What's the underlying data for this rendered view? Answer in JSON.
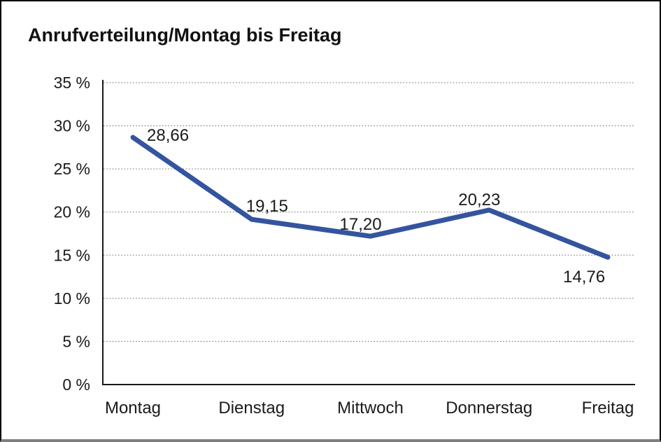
{
  "title": "Anrufverteilung/Montag bis Freitag",
  "colors": {
    "line": "#34549f",
    "grid": "#8a8a8a",
    "axis": "#1a1a1a",
    "text": "#1a1a1a",
    "frame_border": "#000000",
    "frame_shadow": "#7f7f7f",
    "background": "#ffffff"
  },
  "chart_data": {
    "type": "line",
    "title": "Anrufverteilung/Montag bis Freitag",
    "categories": [
      "Montag",
      "Dienstag",
      "Mittwoch",
      "Donnerstag",
      "Freitag"
    ],
    "values": [
      28.66,
      19.15,
      17.2,
      20.23,
      14.76
    ],
    "point_labels": [
      "28,66",
      "19,15",
      "17,20",
      "20,23",
      "14,76"
    ],
    "unit": "%",
    "ylim": [
      0,
      35
    ],
    "y_tick_step": 5,
    "y_tick_labels": [
      "0 %",
      "5 %",
      "10 %",
      "15 %",
      "20 %",
      "25 %",
      "30 %",
      "35 %"
    ],
    "xlabel": "",
    "ylabel": "",
    "legend": "none",
    "grid": "horizontal-dotted"
  }
}
